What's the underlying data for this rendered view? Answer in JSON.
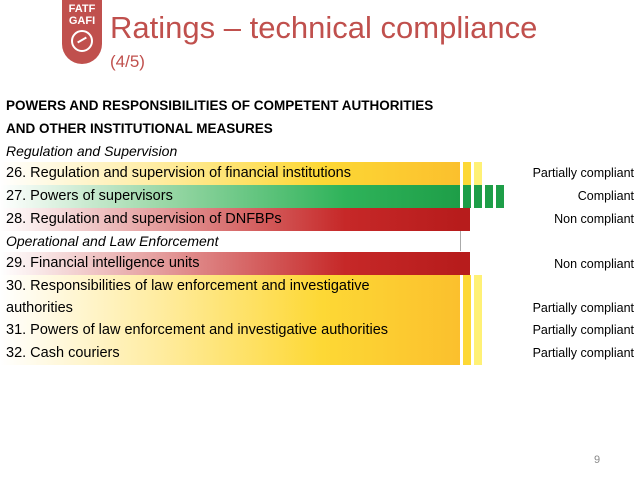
{
  "logo": {
    "line1": "FATF",
    "line2": "GAFI"
  },
  "title": "Ratings – technical compliance",
  "subtitle": "(4/5)",
  "section_heading": {
    "line1": "POWERS AND RESPONSIBILITIES OF COMPETENT AUTHORITIES",
    "line2": "AND OTHER INSTITUTIONAL MEASURES"
  },
  "categories": [
    "Regulation and Supervision",
    "Operational and Law Enforcement"
  ],
  "rows": [
    {
      "label": "26. Regulation and supervision of financial institutions",
      "rating": "Partially compliant",
      "color": "#fbc02d"
    },
    {
      "label": "27. Powers of supervisors",
      "rating": "Compliant",
      "color": "#1e9e48"
    },
    {
      "label": "28. Regulation and supervision of DNFBPs",
      "rating": "Non compliant",
      "color": "#b71c1c"
    },
    {
      "label": "29. Financial intelligence units",
      "rating": "Non compliant",
      "color": "#b71c1c"
    },
    {
      "label_line1": "30. Responsibilities of law enforcement and investigative",
      "label_line2": "authorities",
      "rating": "Partially compliant",
      "color": "#fbc02d"
    },
    {
      "label": "31. Powers of law enforcement and investigative authorities",
      "rating": "Partially compliant",
      "color": "#fbc02d"
    },
    {
      "label": "32. Cash couriers",
      "rating": "Partially compliant",
      "color": "#fbc02d"
    }
  ],
  "page_number": "9"
}
